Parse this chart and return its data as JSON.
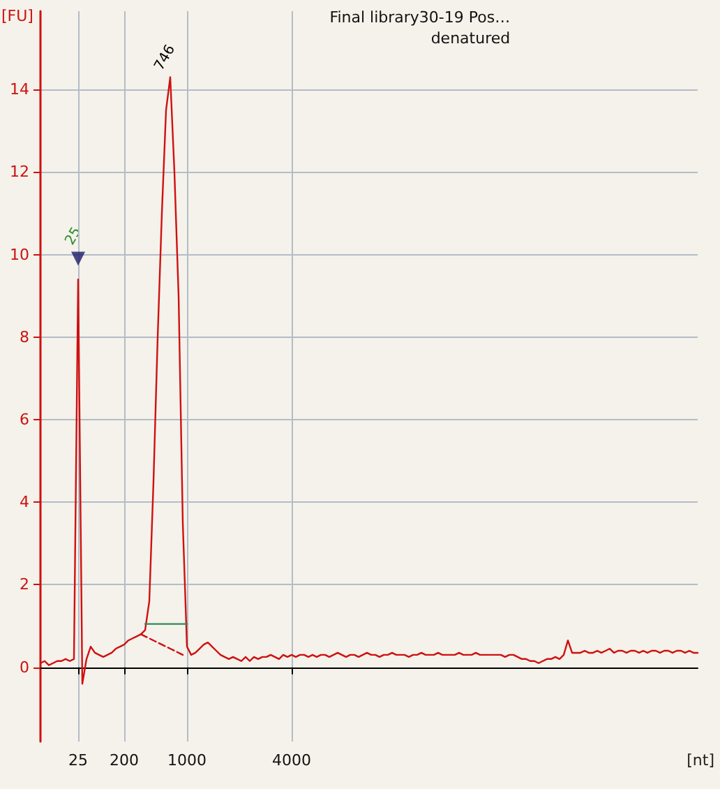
{
  "chart_data": {
    "type": "line",
    "title": "Final library30-19 Pos…",
    "subtitle": "denatured",
    "xlabel": "[nt]",
    "ylabel": "[FU]",
    "categories": [
      null,
      null,
      null,
      null,
      null,
      null,
      null,
      null,
      null,
      "25",
      null,
      null,
      null,
      null,
      null,
      null,
      null,
      null,
      null,
      null,
      "200",
      null,
      null,
      null,
      null,
      null,
      null,
      null,
      null,
      null,
      null,
      null,
      null,
      null,
      null,
      "1000",
      null,
      null,
      null,
      null,
      null,
      null,
      null,
      null,
      null,
      null,
      null,
      null,
      null,
      null,
      null,
      null,
      null,
      null,
      null,
      null,
      null,
      null,
      null,
      null,
      "4000",
      null,
      null,
      null,
      null,
      null,
      null,
      null,
      null,
      null,
      null,
      null,
      null,
      null,
      null,
      null,
      null,
      null,
      null,
      null,
      null,
      null,
      null,
      null,
      null,
      null,
      null,
      null,
      null,
      null,
      null,
      null,
      null,
      null,
      null,
      null,
      null,
      null,
      null,
      null,
      null,
      null,
      null,
      null,
      null,
      null,
      null,
      null,
      null,
      null,
      null,
      null,
      null,
      null,
      null,
      null,
      null,
      null,
      null,
      null,
      null,
      null,
      null,
      null,
      null,
      null,
      null,
      null,
      null,
      null,
      null,
      null,
      null,
      null,
      null,
      null,
      null,
      null,
      null,
      null,
      null,
      null,
      null,
      null,
      null,
      null,
      null,
      null,
      null,
      null,
      null,
      null,
      null,
      null,
      null,
      null,
      null,
      null
    ],
    "series": [
      {
        "color": "#d01010",
        "values": [
          0.1,
          0.15,
          0.05,
          0.1,
          0.15,
          0.15,
          0.2,
          0.15,
          0.2,
          9.4,
          -0.4,
          0.2,
          0.5,
          0.35,
          0.3,
          0.25,
          0.3,
          0.35,
          0.45,
          0.5,
          0.55,
          0.65,
          0.7,
          0.75,
          0.8,
          0.9,
          1.6,
          4.5,
          8,
          11,
          13.5,
          14.3,
          12,
          9,
          3.5,
          0.5,
          0.3,
          0.35,
          0.45,
          0.55,
          0.6,
          0.5,
          0.4,
          0.3,
          0.25,
          0.2,
          0.25,
          0.2,
          0.15,
          0.25,
          0.15,
          0.25,
          0.2,
          0.25,
          0.25,
          0.3,
          0.25,
          0.2,
          0.3,
          0.25,
          0.3,
          0.25,
          0.3,
          0.3,
          0.25,
          0.3,
          0.25,
          0.3,
          0.3,
          0.25,
          0.3,
          0.35,
          0.3,
          0.25,
          0.3,
          0.3,
          0.25,
          0.3,
          0.35,
          0.3,
          0.3,
          0.25,
          0.3,
          0.3,
          0.35,
          0.3,
          0.3,
          0.3,
          0.25,
          0.3,
          0.3,
          0.35,
          0.3,
          0.3,
          0.3,
          0.35,
          0.3,
          0.3,
          0.3,
          0.3,
          0.35,
          0.3,
          0.3,
          0.3,
          0.35,
          0.3,
          0.3,
          0.3,
          0.3,
          0.3,
          0.3,
          0.25,
          0.3,
          0.3,
          0.25,
          0.2,
          0.2,
          0.15,
          0.15,
          0.1,
          0.15,
          0.2,
          0.2,
          0.25,
          0.2,
          0.3,
          0.65,
          0.35,
          0.35,
          0.35,
          0.4,
          0.35,
          0.35,
          0.4,
          0.35,
          0.4,
          0.45,
          0.35,
          0.4,
          0.4,
          0.35,
          0.4,
          0.4,
          0.35,
          0.4,
          0.35,
          0.4,
          0.4,
          0.35,
          0.4,
          0.4,
          0.35,
          0.4,
          0.4,
          0.35,
          0.4,
          0.35,
          0.35
        ],
        "name": null
      },
      {
        "color": "#d01010",
        "line_style": "dashed",
        "values": [
          null,
          null,
          null,
          null,
          null,
          null,
          null,
          null,
          null,
          null,
          null,
          null,
          null,
          null,
          null,
          null,
          null,
          null,
          null,
          null,
          null,
          null,
          null,
          null,
          0.8,
          0.75,
          0.7,
          0.65,
          0.6,
          0.55,
          0.5,
          0.45,
          0.4,
          0.35,
          0.3,
          null,
          null,
          null,
          null,
          null,
          null,
          null,
          null,
          null,
          null,
          null,
          null,
          null,
          null,
          null,
          null,
          null,
          null,
          null,
          null,
          null,
          null,
          null,
          null,
          null,
          null,
          null,
          null,
          null,
          null,
          null,
          null,
          null,
          null,
          null,
          null,
          null,
          null,
          null,
          null,
          null,
          null,
          null,
          null,
          null,
          null,
          null,
          null,
          null,
          null,
          null,
          null,
          null,
          null,
          null,
          null,
          null,
          null,
          null,
          null,
          null,
          null,
          null,
          null,
          null,
          null,
          null,
          null,
          null,
          null,
          null,
          null,
          null,
          null,
          null,
          null,
          null,
          null,
          null,
          null,
          null,
          null,
          null,
          null,
          null,
          null,
          null,
          null,
          null,
          null,
          null,
          null,
          null,
          null,
          null,
          null,
          null,
          null,
          null,
          null,
          null,
          null,
          null,
          null,
          null,
          null,
          null,
          null,
          null,
          null,
          null,
          null,
          null,
          null,
          null,
          null,
          null,
          null,
          null,
          null,
          null,
          null,
          null
        ]
      },
      {
        "color": "#2e8b57",
        "values": [
          null,
          null,
          null,
          null,
          null,
          null,
          null,
          null,
          null,
          null,
          null,
          null,
          null,
          null,
          null,
          null,
          null,
          null,
          null,
          null,
          null,
          null,
          null,
          null,
          null,
          1.05,
          1.05,
          1.05,
          1.05,
          1.05,
          1.05,
          1.05,
          1.05,
          1.05,
          1.05,
          1.05,
          null,
          null,
          null,
          null,
          null,
          null,
          null,
          null,
          null,
          null,
          null,
          null,
          null,
          null,
          null,
          null,
          null,
          null,
          null,
          null,
          null,
          null,
          null,
          null,
          null,
          null,
          null,
          null,
          null,
          null,
          null,
          null,
          null,
          null,
          null,
          null,
          null,
          null,
          null,
          null,
          null,
          null,
          null,
          null,
          null,
          null,
          null,
          null,
          null,
          null,
          null,
          null,
          null,
          null,
          null,
          null,
          null,
          null,
          null,
          null,
          null,
          null,
          null,
          null,
          null,
          null,
          null,
          null,
          null,
          null,
          null,
          null,
          null,
          null,
          null,
          null,
          null,
          null,
          null,
          null,
          null,
          null,
          null,
          null,
          null,
          null,
          null,
          null,
          null,
          null,
          null,
          null,
          null,
          null,
          null,
          null,
          null,
          null,
          null,
          null,
          null,
          null,
          null,
          null,
          null,
          null,
          null,
          null,
          null,
          null,
          null,
          null,
          null,
          null,
          null,
          null,
          null,
          null,
          null,
          null,
          null,
          null
        ]
      },
      {
        "type": "scatter",
        "color": "#1c1c6c",
        "marker": "triangle",
        "x": [
          "25"
        ],
        "values": [
          9.9
        ]
      }
    ],
    "annotations": [
      {
        "text": "746",
        "y": 14.3
      },
      {
        "text": "25",
        "x": "25",
        "y": 9.9
      }
    ],
    "ylim": [
      -1.8,
      15.9
    ],
    "yticks": [
      0,
      2,
      4,
      6,
      8,
      10,
      12,
      14
    ],
    "grid": true,
    "marker": "none",
    "line_style": "solid"
  }
}
